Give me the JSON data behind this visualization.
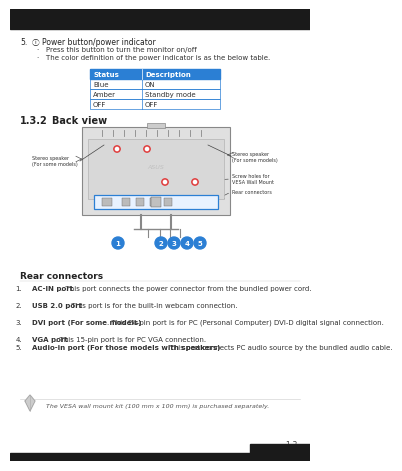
{
  "bg_color": "#ffffff",
  "table_header_bg": "#2b7fd4",
  "table_header_color": "#ffffff",
  "table_header": [
    "Status",
    "Description"
  ],
  "table_rows": [
    [
      "Blue",
      "ON"
    ],
    [
      "Amber",
      "Standby mode"
    ],
    [
      "OFF",
      "OFF"
    ]
  ],
  "table_border": "#2b7fd4",
  "title_num": "1.3.2",
  "title_text": "Back view",
  "rear_connectors_title": "Rear connectors",
  "items": [
    [
      "AC-IN port",
      ". This port connects the power connector from the bundled power cord."
    ],
    [
      "USB 2.0 port",
      ". This port is for the built-in webcam connection."
    ],
    [
      "DVI port (For some models)",
      ". This 24-pin port is for PC (Personal Computer) DVI-D digital signal connection."
    ],
    [
      "VGA port",
      ". This 15-pin port is for PC VGA connection."
    ],
    [
      "Audio-in port (For those models with speakers)",
      ". This port connects PC audio source by the bundled audio cable."
    ]
  ],
  "note_text": "The VESA wall mount kit (100 mm x 100 mm) is purchased separately.",
  "page_num": "1-3",
  "connector_box_color": "#2b7fd4",
  "screw_color": "#e04040",
  "top_bar_color": "#1a1a1a",
  "bottom_bar_color": "#1a1a1a"
}
